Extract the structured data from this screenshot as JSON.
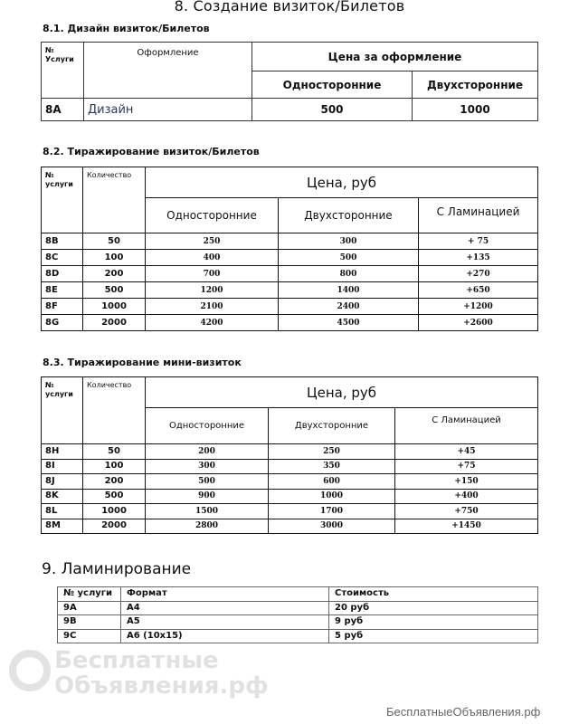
{
  "title": "8. Создание визиток/Билетов",
  "watermark": {
    "line1": "Бесплатные",
    "line2": "Объявления.рф",
    "footer": "БесплатныеОбъявления.рф"
  },
  "s81": {
    "heading": "8.1.  Дизайн визиток/Билетов",
    "headers": {
      "num": "№ Услуги",
      "design": "Оформление",
      "price": "Цена за оформление",
      "one": "Односторонние",
      "two": "Двухсторонние"
    },
    "rows": [
      {
        "id": "8A",
        "name": "Дизайн",
        "one": "500",
        "two": "1000"
      }
    ]
  },
  "s82": {
    "heading": "8.2. Тиражирование визиток/Билетов",
    "headers": {
      "num": "№ услуги",
      "qty": "Количество",
      "price": "Цена, руб",
      "one": "Односторонние",
      "two": "Двухсторонние",
      "lam": "С Ламинацией"
    },
    "rows": [
      {
        "id": "8B",
        "qty": "50",
        "one": "250",
        "two": "300",
        "lam": "+ 75"
      },
      {
        "id": "8C",
        "qty": "100",
        "one": "400",
        "two": "500",
        "lam": "+135"
      },
      {
        "id": "8D",
        "qty": "200",
        "one": "700",
        "two": "800",
        "lam": "+270"
      },
      {
        "id": "8E",
        "qty": "500",
        "one": "1200",
        "two": "1400",
        "lam": "+650"
      },
      {
        "id": "8F",
        "qty": "1000",
        "one": "2100",
        "two": "2400",
        "lam": "+1200"
      },
      {
        "id": "8G",
        "qty": "2000",
        "one": "4200",
        "two": "4500",
        "lam": "+2600"
      }
    ]
  },
  "s83": {
    "heading": "8.3. Тиражирование мини-визиток",
    "headers": {
      "num": "№ услуги",
      "qty": "Количество",
      "price": "Цена, руб",
      "one": "Односторонние",
      "two": "Двухсторонние",
      "lam": "С Ламинацией"
    },
    "rows": [
      {
        "id": "8H",
        "qty": "50",
        "one": "200",
        "two": "250",
        "lam": "+45"
      },
      {
        "id": "8I",
        "qty": "100",
        "one": "300",
        "two": "350",
        "lam": "+75"
      },
      {
        "id": "8J",
        "qty": "200",
        "one": "500",
        "two": "600",
        "lam": "+150"
      },
      {
        "id": "8K",
        "qty": "500",
        "one": "900",
        "two": "1000",
        "lam": "+400"
      },
      {
        "id": "8L",
        "qty": "1000",
        "one": "1500",
        "two": "1700",
        "lam": "+750"
      },
      {
        "id": "8M",
        "qty": "2000",
        "one": "2800",
        "two": "3000",
        "lam": "+1450"
      }
    ]
  },
  "s9": {
    "heading": "9. Ламинирование",
    "headers": {
      "num": "№ услуги",
      "format": "Формат",
      "cost": "Стоимость"
    },
    "rows": [
      {
        "id": "9A",
        "format": "А4",
        "cost": "20 руб"
      },
      {
        "id": "9B",
        "format": "А5",
        "cost": "9 руб"
      },
      {
        "id": "9C",
        "format": "А6 (10х15)",
        "cost": "5 руб"
      }
    ]
  }
}
